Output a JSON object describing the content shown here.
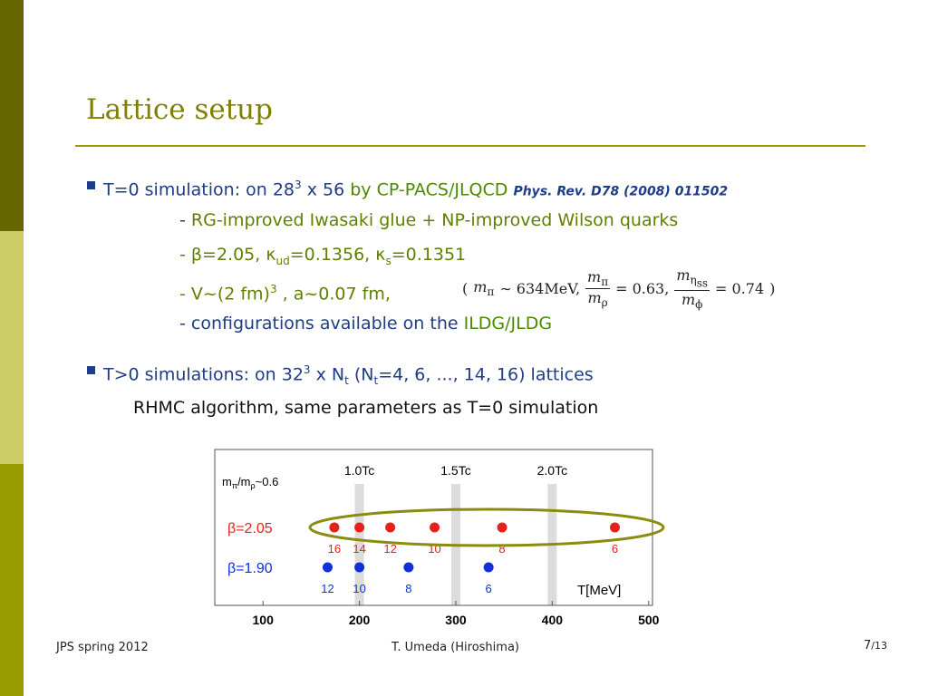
{
  "title": "Lattice setup",
  "bullet1": {
    "a": "T=0 simulation: on 28",
    "sup": "3",
    "b": " x 56 ",
    "c": "by CP-PACS/JLQCD",
    "ref": "Phys. Rev. D78 (2008) 011502"
  },
  "sub1": {
    "dash": "-",
    "text": "RG-improved Iwasaki glue + NP-improved Wilson quarks"
  },
  "sub2": {
    "a": "- β=2.05, κ",
    "s1": "ud",
    "b": "=0.1356,  κ",
    "s2": "s",
    "c": "=0.1351"
  },
  "sub3": {
    "a": "- V~(2 fm)",
    "sup": "3",
    "b": " ,  a~0.07 fm,"
  },
  "formula": {
    "open": "(",
    "lead": [
      "m",
      "π"
    ],
    "mass": "∼ 634MeV,",
    "frac1": {
      "num": [
        "m",
        "π"
      ],
      "den": [
        "m",
        "ρ"
      ],
      "rhs": "= 0.63,"
    },
    "frac2": {
      "num": [
        "m",
        "η",
        "ss"
      ],
      "den": [
        "m",
        "ϕ"
      ],
      "rhs": "= 0.74"
    },
    "close": ")"
  },
  "sub4": {
    "a": "- configurations available on the ",
    "b": "ILDG/JLDG"
  },
  "bullet2": {
    "a": "T>0 simulations: on 32",
    "sup": "3",
    "b": " x N",
    "s1": "t",
    "c": "  (N",
    "s2": "t",
    "d": "=4, 6, ..., 14, 16) lattices"
  },
  "line": "RHMC algorithm, same parameters as T=0 simulation",
  "figure": {
    "ratio": [
      "m",
      "π",
      "/m",
      "ρ",
      "~0.6"
    ],
    "xlim": [
      50,
      504
    ],
    "xticks": [
      100,
      200,
      300,
      400,
      500
    ],
    "xlabel": "T[MeV]",
    "tc": [
      {
        "value": 200,
        "label": "1.0Tc"
      },
      {
        "value": 300,
        "label": "1.5Tc"
      },
      {
        "value": 400,
        "label": "2.0Tc"
      }
    ],
    "series": [
      {
        "name": "β=2.05",
        "color": "#e8201c",
        "x": [
          174,
          200,
          232,
          278,
          348,
          465
        ],
        "labels": [
          16,
          14,
          12,
          10,
          8,
          6
        ]
      },
      {
        "name": "β=1.90",
        "color": "#1030e0",
        "x": [
          167,
          200,
          251,
          334
        ],
        "labels": [
          12,
          10,
          8,
          6
        ]
      }
    ]
  },
  "footer": {
    "left": "JPS spring 2012",
    "center": "T. Umeda (Hiroshima)",
    "page": "7",
    "total": "/13"
  }
}
